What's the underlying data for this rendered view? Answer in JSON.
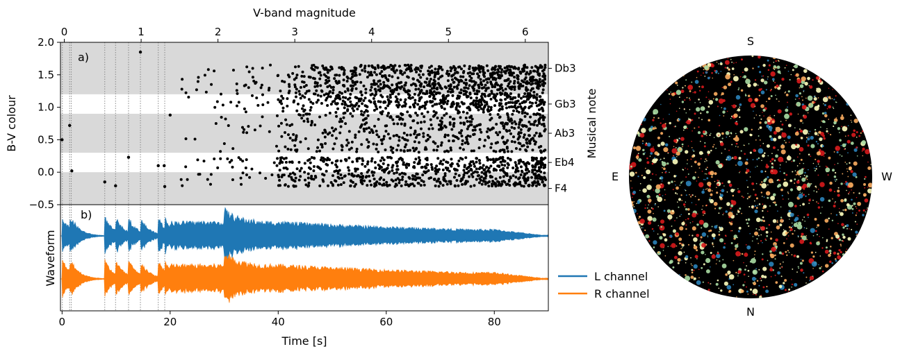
{
  "chart_data": [
    {
      "type": "scatter",
      "panel_label": "a)",
      "ylabel": "B-V colour",
      "top_xlabel": "V-band magnitude",
      "right_ylabel": "Musical note",
      "xlim": [
        -0.3,
        90
      ],
      "top_xlim": [
        -0.05,
        6.3
      ],
      "ylim": [
        -0.5,
        2.0
      ],
      "yticks": [
        -0.5,
        0.0,
        0.5,
        1.0,
        1.5,
        2.0
      ],
      "ytick_labels": [
        "−0.5",
        "0.0",
        "0.5",
        "1.0",
        "1.5",
        "2.0"
      ],
      "top_xticks": [
        0,
        1,
        2,
        3,
        4,
        5,
        6
      ],
      "top_xtick_labels": [
        "0",
        "1",
        "2",
        "3",
        "4",
        "5",
        "6"
      ],
      "note_bands": [
        [
          1.2,
          2.0
        ],
        [
          0.3,
          0.9
        ],
        [
          -0.5,
          0.0
        ]
      ],
      "note_ticks": [
        {
          "note": "Db3",
          "bv": 1.6
        },
        {
          "note": "Gb3",
          "bv": 1.05
        },
        {
          "note": "Ab3",
          "bv": 0.6
        },
        {
          "note": "Eb4",
          "bv": 0.15
        },
        {
          "note": "F4",
          "bv": -0.25
        }
      ],
      "bright_star_times": [
        0.05,
        1.4,
        1.7,
        7.9,
        9.9,
        12.3,
        14.5,
        17.8,
        19.0
      ],
      "highlight_points": [
        {
          "t": 0.0,
          "bv": 0.5
        },
        {
          "t": 1.4,
          "bv": 0.72
        },
        {
          "t": 1.8,
          "bv": 0.02
        },
        {
          "t": 7.9,
          "bv": -0.15
        },
        {
          "t": 9.9,
          "bv": -0.21
        },
        {
          "t": 12.3,
          "bv": 0.23
        },
        {
          "t": 14.5,
          "bv": 1.85
        },
        {
          "t": 17.8,
          "bv": 0.1
        },
        {
          "t": 19.0,
          "bv": -0.22
        },
        {
          "t": 18.9,
          "bv": 0.1
        },
        {
          "t": 20.0,
          "bv": 0.88
        }
      ],
      "scatter_description_density": "increasing from t=20 to t=90"
    },
    {
      "type": "line",
      "panel_label": "b)",
      "ylabel": "Waveform",
      "xlabel": "Time [s]",
      "xlim": [
        -0.3,
        90
      ],
      "xticks": [
        0,
        20,
        40,
        60,
        80
      ],
      "xtick_labels": [
        "0",
        "20",
        "40",
        "60",
        "80"
      ],
      "series": [
        {
          "name": "L channel",
          "color": "#1f77b4"
        },
        {
          "name": "R channel",
          "color": "#ff7f0e"
        }
      ]
    },
    {
      "type": "scatter",
      "compass": {
        "top": "S",
        "left": "E",
        "right": "W",
        "bottom": "N"
      },
      "background": "#000000",
      "colormap": [
        "#d7191c",
        "#fdae61",
        "#ffffbf",
        "#abdda4",
        "#2b83ba"
      ]
    }
  ]
}
